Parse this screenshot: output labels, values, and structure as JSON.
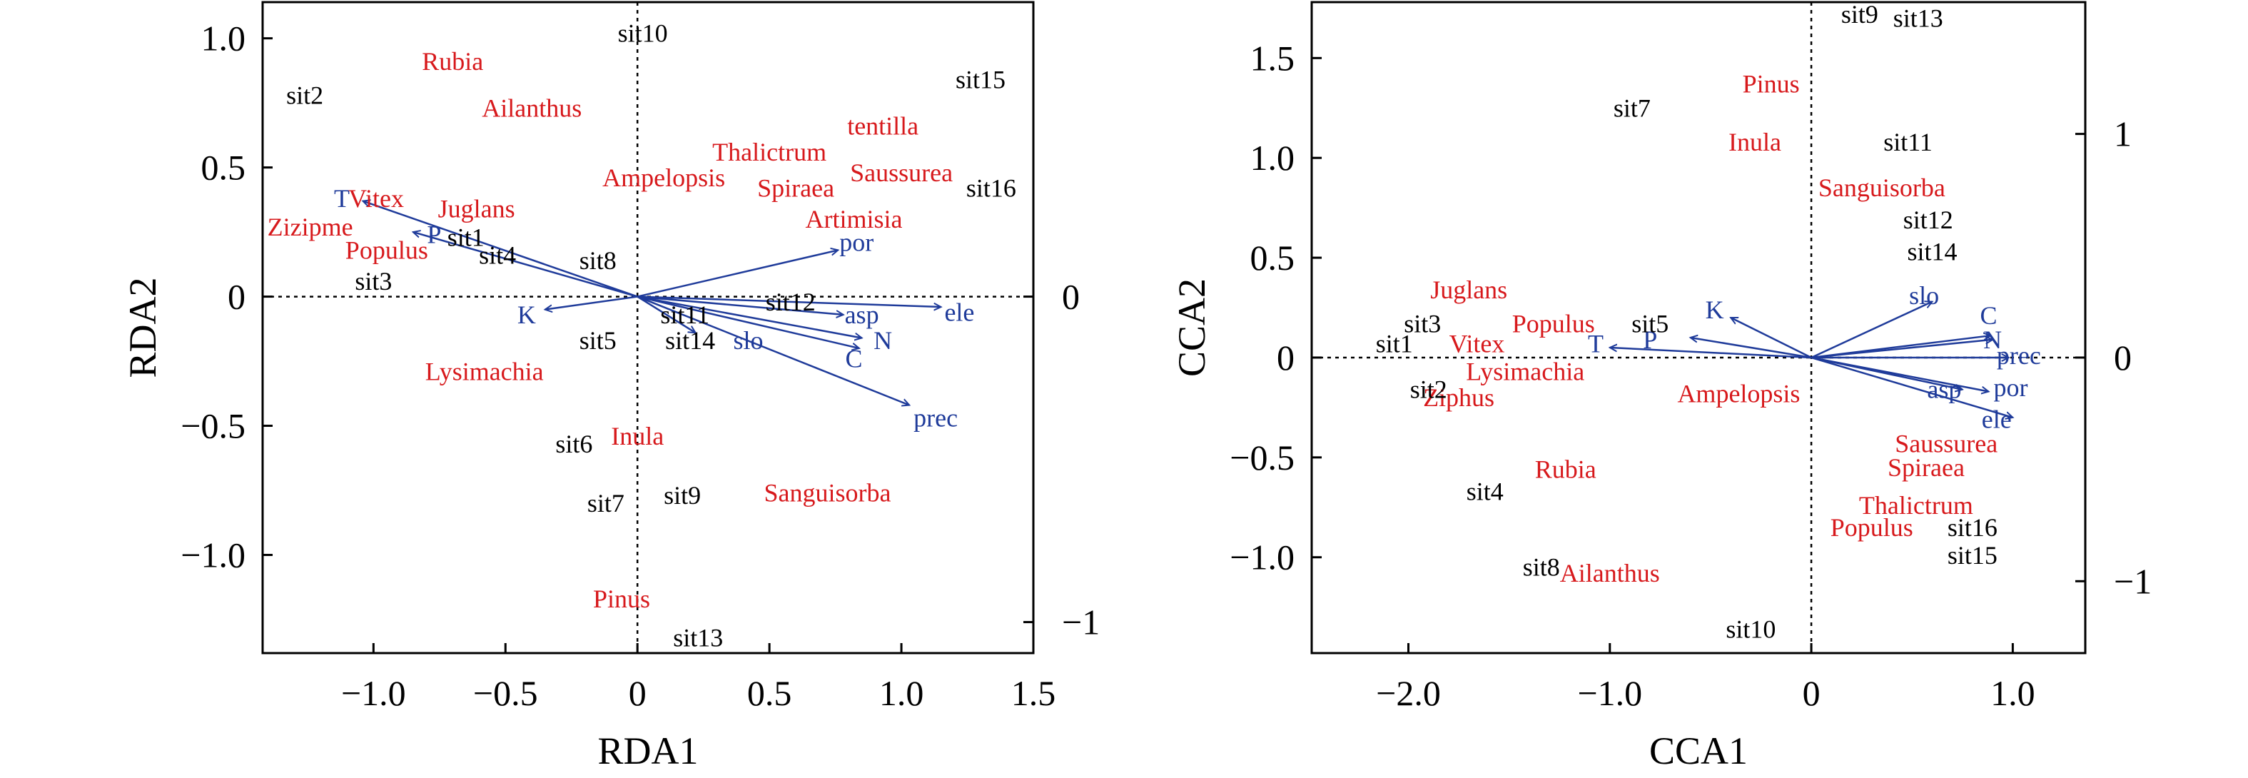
{
  "chart_data": [
    {
      "type": "scatter",
      "xlabel": "RDA1",
      "ylabel": "RDA2",
      "xlim": [
        -1.42,
        1.5
      ],
      "ylim": [
        -1.38,
        1.14
      ],
      "xticks": [
        -1.0,
        -0.5,
        0,
        0.5,
        1.0,
        1.5
      ],
      "xtick_labels": [
        "−1.0",
        "−0.5",
        "0",
        "0.5",
        "1.0",
        "1.5"
      ],
      "yticks": [
        -1.0,
        -0.5,
        0,
        0.5,
        1.0
      ],
      "ytick_labels": [
        "−1.0",
        "−0.5",
        "0",
        "0.5",
        "1.0"
      ],
      "right_axis": {
        "ticks": [
          -1.26,
          0
        ],
        "labels": [
          "−1",
          "0"
        ]
      },
      "sites": [
        {
          "label": "sit10",
          "x": 0.02,
          "y": 1.02
        },
        {
          "label": "sit2",
          "x": -1.26,
          "y": 0.78
        },
        {
          "label": "sit15",
          "x": 1.3,
          "y": 0.84
        },
        {
          "label": "sit16",
          "x": 1.34,
          "y": 0.42
        },
        {
          "label": "sit1",
          "x": -0.65,
          "y": 0.23
        },
        {
          "label": "sit4",
          "x": -0.53,
          "y": 0.16
        },
        {
          "label": "sit8",
          "x": -0.15,
          "y": 0.14
        },
        {
          "label": "sit3",
          "x": -1.0,
          "y": 0.06
        },
        {
          "label": "sit12",
          "x": 0.58,
          "y": -0.02
        },
        {
          "label": "sit11",
          "x": 0.18,
          "y": -0.07
        },
        {
          "label": "sit5",
          "x": -0.15,
          "y": -0.17
        },
        {
          "label": "sit14",
          "x": 0.2,
          "y": -0.17
        },
        {
          "label": "sit6",
          "x": -0.24,
          "y": -0.57
        },
        {
          "label": "sit7",
          "x": -0.12,
          "y": -0.8
        },
        {
          "label": "sit9",
          "x": 0.17,
          "y": -0.77
        },
        {
          "label": "sit13",
          "x": 0.23,
          "y": -1.32
        }
      ],
      "species": [
        {
          "label": "Rubia",
          "x": -0.7,
          "y": 0.91
        },
        {
          "label": "Ailanthus",
          "x": -0.4,
          "y": 0.73
        },
        {
          "label": "tentilla",
          "x": 0.93,
          "y": 0.66
        },
        {
          "label": "Thalictrum",
          "x": 0.5,
          "y": 0.56
        },
        {
          "label": "Saussurea",
          "x": 1.0,
          "y": 0.48
        },
        {
          "label": "Ampelopsis",
          "x": 0.1,
          "y": 0.46
        },
        {
          "label": "Spiraea",
          "x": 0.6,
          "y": 0.42
        },
        {
          "label": "Vitex",
          "x": -0.99,
          "y": 0.38
        },
        {
          "label": "Juglans",
          "x": -0.61,
          "y": 0.34
        },
        {
          "label": "Artimisia",
          "x": 0.82,
          "y": 0.3
        },
        {
          "label": "Zizipme",
          "x": -1.24,
          "y": 0.27
        },
        {
          "label": "Populus",
          "x": -0.95,
          "y": 0.18
        },
        {
          "label": "Lysimachia",
          "x": -0.58,
          "y": -0.29
        },
        {
          "label": "Inula",
          "x": 0.0,
          "y": -0.54
        },
        {
          "label": "Sanguisorba",
          "x": 0.72,
          "y": -0.76
        },
        {
          "label": "Pinus",
          "x": -0.06,
          "y": -1.17
        }
      ],
      "env_vectors": [
        {
          "label": "T",
          "x": -1.04,
          "y": 0.37,
          "lx": -1.12,
          "ly": 0.38
        },
        {
          "label": "P",
          "x": -0.85,
          "y": 0.25,
          "lx": -0.77,
          "ly": 0.24
        },
        {
          "label": "K",
          "x": -0.35,
          "y": -0.05,
          "lx": -0.42,
          "ly": -0.07
        },
        {
          "label": "por",
          "x": 0.76,
          "y": 0.18,
          "lx": 0.83,
          "ly": 0.21
        },
        {
          "label": "ele",
          "x": 1.15,
          "y": -0.04,
          "lx": 1.22,
          "ly": -0.06
        },
        {
          "label": "asp",
          "x": 0.78,
          "y": -0.07,
          "lx": 0.85,
          "ly": -0.07
        },
        {
          "label": "slo",
          "x": 0.22,
          "y": -0.14,
          "lx": 0.42,
          "ly": -0.17
        },
        {
          "label": "N",
          "x": 0.85,
          "y": -0.16,
          "lx": 0.93,
          "ly": -0.17
        },
        {
          "label": "C",
          "x": 0.84,
          "y": -0.2,
          "lx": 0.82,
          "ly": -0.24
        },
        {
          "label": "prec",
          "x": 1.03,
          "y": -0.42,
          "lx": 1.13,
          "ly": -0.47
        }
      ]
    },
    {
      "type": "scatter",
      "xlabel": "CCA1",
      "ylabel": "CCA2",
      "xlim": [
        -2.48,
        1.36
      ],
      "ylim": [
        -1.48,
        1.78
      ],
      "xticks": [
        -2.0,
        -1.0,
        0,
        1.0
      ],
      "xtick_labels": [
        "−2.0",
        "−1.0",
        "0",
        "1.0"
      ],
      "yticks": [
        -1.0,
        -0.5,
        0,
        0.5,
        1.0,
        1.5
      ],
      "ytick_labels": [
        "−1.0",
        "−0.5",
        "0",
        "0.5",
        "1.0",
        "1.5"
      ],
      "right_axis": {
        "ticks": [
          -1.12,
          0,
          1.12
        ],
        "labels": [
          "−1",
          "0",
          "1"
        ]
      },
      "sites": [
        {
          "label": "sit9",
          "x": 0.24,
          "y": 1.72
        },
        {
          "label": "sit13",
          "x": 0.53,
          "y": 1.7
        },
        {
          "label": "sit7",
          "x": -0.89,
          "y": 1.25
        },
        {
          "label": "sit11",
          "x": 0.48,
          "y": 1.08
        },
        {
          "label": "sit12",
          "x": 0.58,
          "y": 0.69
        },
        {
          "label": "sit14",
          "x": 0.6,
          "y": 0.53
        },
        {
          "label": "sit3",
          "x": -1.93,
          "y": 0.17
        },
        {
          "label": "sit5",
          "x": -0.8,
          "y": 0.17
        },
        {
          "label": "sit1",
          "x": -2.07,
          "y": 0.07
        },
        {
          "label": "sit2",
          "x": -1.9,
          "y": -0.16
        },
        {
          "label": "sit4",
          "x": -1.62,
          "y": -0.67
        },
        {
          "label": "sit16",
          "x": 0.8,
          "y": -0.85
        },
        {
          "label": "sit15",
          "x": 0.8,
          "y": -0.99
        },
        {
          "label": "sit8",
          "x": -1.34,
          "y": -1.05
        },
        {
          "label": "sit10",
          "x": -0.3,
          "y": -1.36
        }
      ],
      "species": [
        {
          "label": "Pinus",
          "x": -0.2,
          "y": 1.37
        },
        {
          "label": "Inula",
          "x": -0.28,
          "y": 1.08
        },
        {
          "label": "Sanguisorba",
          "x": 0.35,
          "y": 0.85
        },
        {
          "label": "Juglans",
          "x": -1.7,
          "y": 0.34
        },
        {
          "label": "Populus",
          "x": -1.28,
          "y": 0.17
        },
        {
          "label": "Vitex",
          "x": -1.66,
          "y": 0.07
        },
        {
          "label": "Lysimachia",
          "x": -1.42,
          "y": -0.07
        },
        {
          "label": "Ziphus",
          "x": -1.75,
          "y": -0.2
        },
        {
          "label": "Ampelopsis",
          "x": -0.36,
          "y": -0.18
        },
        {
          "label": "Saussurea",
          "x": 0.67,
          "y": -0.43
        },
        {
          "label": "Spiraea",
          "x": 0.57,
          "y": -0.55
        },
        {
          "label": "Rubia",
          "x": -1.22,
          "y": -0.56
        },
        {
          "label": "Thalictrum",
          "x": 0.52,
          "y": -0.74
        },
        {
          "label": "Populus",
          "x": 0.3,
          "y": -0.85
        },
        {
          "label": "Ailanthus",
          "x": -1.0,
          "y": -1.08
        }
      ],
      "env_vectors": [
        {
          "label": "K",
          "x": -0.4,
          "y": 0.2,
          "lx": -0.48,
          "ly": 0.24
        },
        {
          "label": "P",
          "x": -0.6,
          "y": 0.1,
          "lx": -0.8,
          "ly": 0.09
        },
        {
          "label": "T",
          "x": -1.0,
          "y": 0.05,
          "lx": -1.07,
          "ly": 0.07
        },
        {
          "label": "slo",
          "x": 0.6,
          "y": 0.28,
          "lx": 0.56,
          "ly": 0.31
        },
        {
          "label": "C",
          "x": 0.89,
          "y": 0.11,
          "lx": 0.88,
          "ly": 0.21
        },
        {
          "label": "N",
          "x": 0.9,
          "y": 0.09,
          "lx": 0.9,
          "ly": 0.09
        },
        {
          "label": "prec",
          "x": 0.98,
          "y": 0.0,
          "lx": 1.03,
          "ly": 0.01
        },
        {
          "label": "por",
          "x": 0.88,
          "y": -0.17,
          "lx": 0.99,
          "ly": -0.15
        },
        {
          "label": "asp",
          "x": 0.75,
          "y": -0.16,
          "lx": 0.66,
          "ly": -0.16
        },
        {
          "label": "ele",
          "x": 1.0,
          "y": -0.3,
          "lx": 0.92,
          "ly": -0.31
        }
      ]
    }
  ]
}
